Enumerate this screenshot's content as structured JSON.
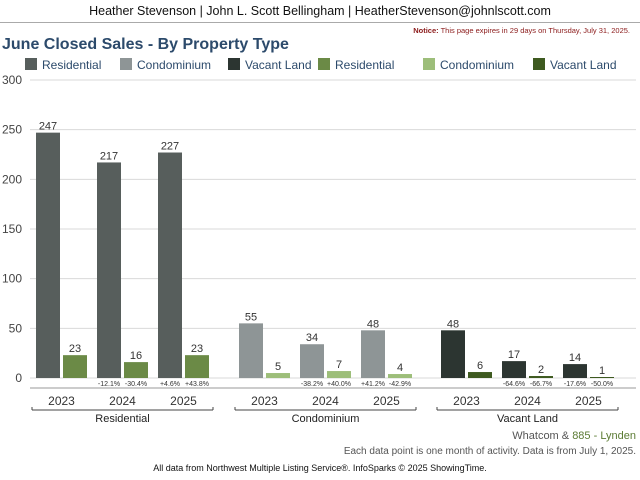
{
  "header": "Heather Stevenson | John L. Scott Bellingham | HeatherStevenson@johnlscott.com",
  "notice": {
    "label": "Notice:",
    "text": "This page expires in 29 days on Thursday, July 31, 2025."
  },
  "footer": {
    "area_prefix": "Whatcom &",
    "area_name": "885 - Lynden",
    "data_note": "Each data point is one month of activity. Data is from July 1, 2025.",
    "source": "All data from Northwest Multiple Listing Service®. InfoSparks © 2025 ShowingTime."
  },
  "chart_data": {
    "type": "bar",
    "title": "June Closed Sales - By Property Type",
    "ylim": [
      0,
      300
    ],
    "yticks": [
      0,
      50,
      100,
      150,
      200,
      250,
      300
    ],
    "grid": true,
    "legend_position": "top",
    "legend": [
      {
        "name": "Residential",
        "color": "#575e5c"
      },
      {
        "name": "Condominium",
        "color": "#8e9596"
      },
      {
        "name": "Vacant Land",
        "color": "#2c3531"
      },
      {
        "name": "Residential",
        "color": "#6b8a46"
      },
      {
        "name": "Condominium",
        "color": "#9dbe7a"
      },
      {
        "name": "Vacant Land",
        "color": "#3e5a20"
      }
    ],
    "groups": [
      {
        "name": "Residential",
        "primary_color": "#575e5c",
        "secondary_color": "#6b8a46",
        "years": [
          {
            "year": "2023",
            "primary": 247,
            "secondary": 23,
            "change_primary": "",
            "change_secondary": ""
          },
          {
            "year": "2024",
            "primary": 217,
            "secondary": 16,
            "change_primary": "-12.1%",
            "change_secondary": "-30.4%"
          },
          {
            "year": "2025",
            "primary": 227,
            "secondary": 23,
            "change_primary": "+4.6%",
            "change_secondary": "+43.8%"
          }
        ]
      },
      {
        "name": "Condominium",
        "primary_color": "#8e9596",
        "secondary_color": "#9dbe7a",
        "years": [
          {
            "year": "2023",
            "primary": 55,
            "secondary": 5,
            "change_primary": "",
            "change_secondary": ""
          },
          {
            "year": "2024",
            "primary": 34,
            "secondary": 7,
            "change_primary": "-38.2%",
            "change_secondary": "+40.0%"
          },
          {
            "year": "2025",
            "primary": 48,
            "secondary": 4,
            "change_primary": "+41.2%",
            "change_secondary": "-42.9%"
          }
        ]
      },
      {
        "name": "Vacant Land",
        "primary_color": "#2c3531",
        "secondary_color": "#3e5a20",
        "years": [
          {
            "year": "2023",
            "primary": 48,
            "secondary": 6,
            "change_primary": "",
            "change_secondary": ""
          },
          {
            "year": "2024",
            "primary": 17,
            "secondary": 2,
            "change_primary": "-64.6%",
            "change_secondary": "-66.7%"
          },
          {
            "year": "2025",
            "primary": 14,
            "secondary": 1,
            "change_primary": "-17.6%",
            "change_secondary": "-50.0%"
          }
        ]
      }
    ]
  }
}
